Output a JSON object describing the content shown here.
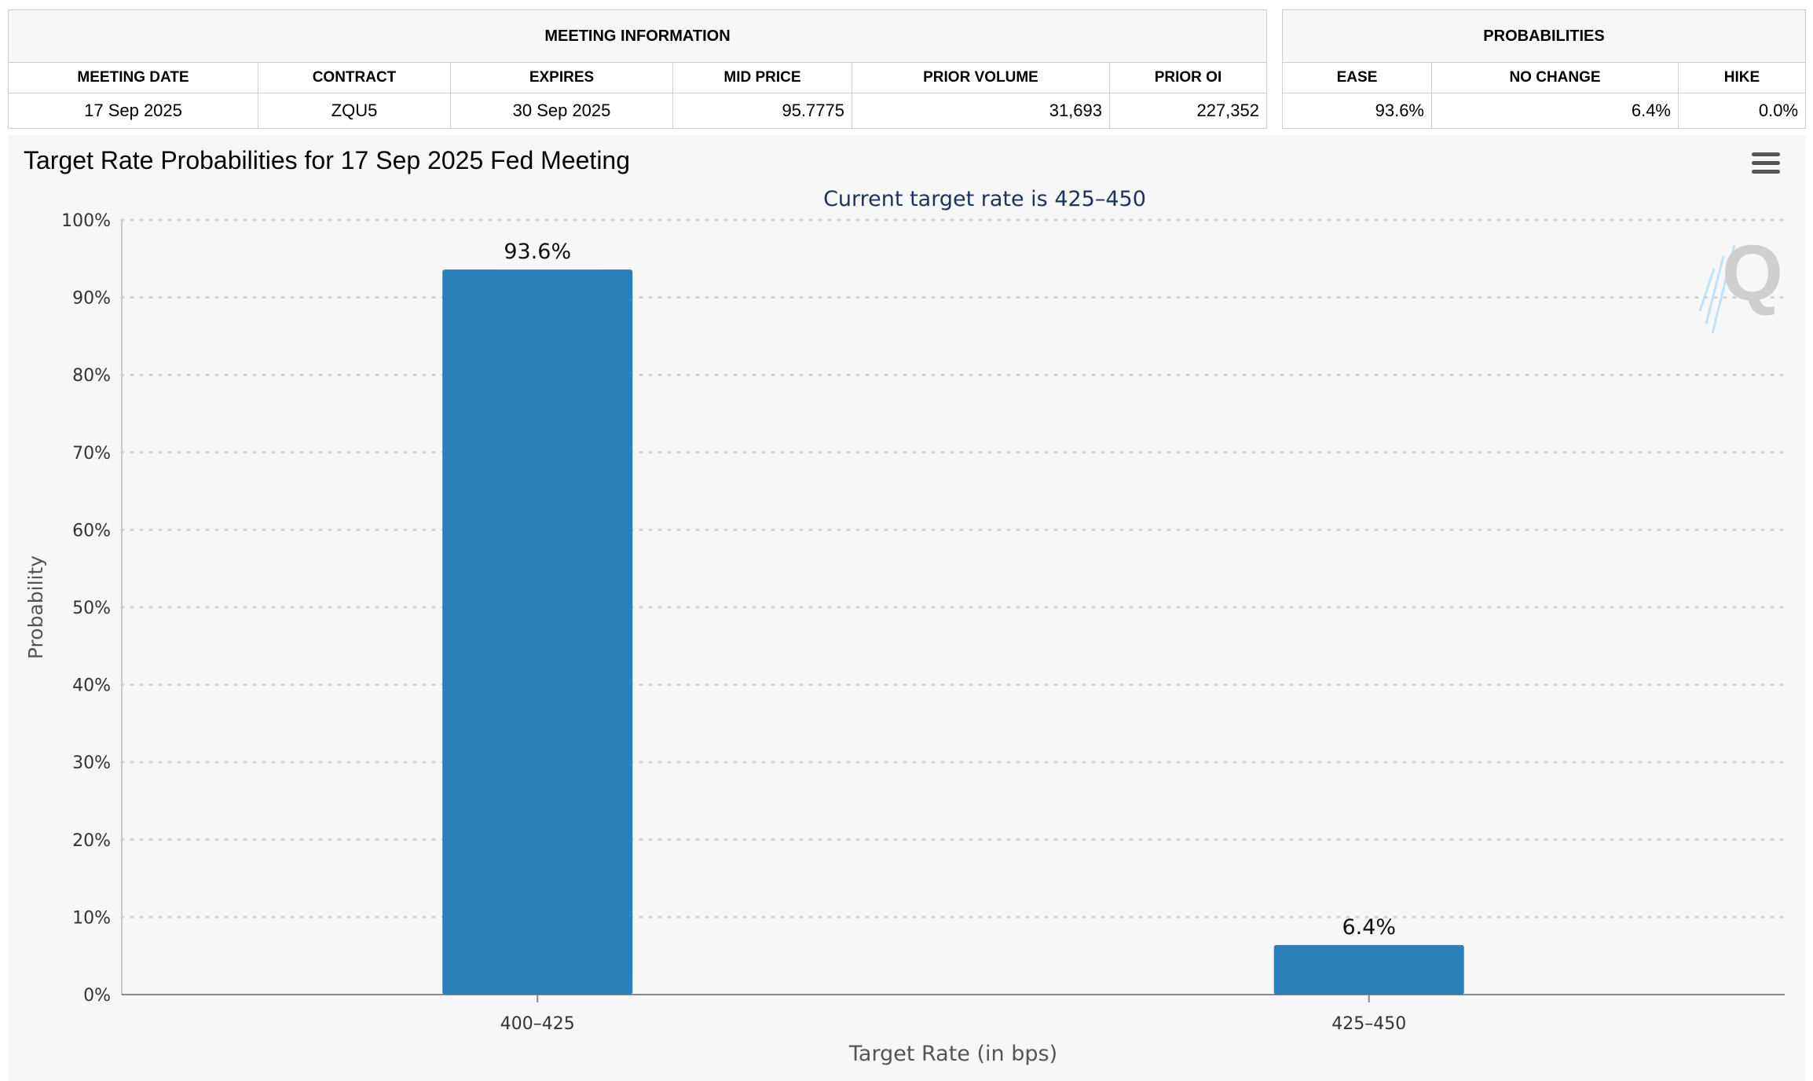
{
  "meeting_info": {
    "title": "MEETING INFORMATION",
    "headers": [
      "MEETING DATE",
      "CONTRACT",
      "EXPIRES",
      "MID PRICE",
      "PRIOR VOLUME",
      "PRIOR OI"
    ],
    "row": [
      "17 Sep 2025",
      "ZQU5",
      "30 Sep 2025",
      "95.7775",
      "31,693",
      "227,352"
    ]
  },
  "probabilities": {
    "title": "PROBABILITIES",
    "headers": [
      "EASE",
      "NO CHANGE",
      "HIKE"
    ],
    "row": [
      "93.6%",
      "6.4%",
      "0.0%"
    ]
  },
  "chart_data": {
    "type": "bar",
    "title": "Target Rate Probabilities for 17 Sep 2025 Fed Meeting",
    "subtitle": "Current target rate is 425–450",
    "xlabel": "Target Rate (in bps)",
    "ylabel": "Probability",
    "categories": [
      "400–425",
      "425–450"
    ],
    "values": [
      93.6,
      6.4
    ],
    "data_labels": [
      "93.6%",
      "6.4%"
    ],
    "ylim": [
      0,
      100
    ],
    "y_ticks": [
      0,
      10,
      20,
      30,
      40,
      50,
      60,
      70,
      80,
      90,
      100
    ],
    "y_tick_labels": [
      "0%",
      "10%",
      "20%",
      "30%",
      "40%",
      "50%",
      "60%",
      "70%",
      "80%",
      "90%",
      "100%"
    ],
    "grid": true,
    "bar_color": "#2a80b9",
    "subtitle_color": "#1f3160",
    "axis_text_color": "#333333"
  },
  "icons": {
    "menu": "hamburger-menu-icon",
    "watermark": "q-logo-icon"
  }
}
